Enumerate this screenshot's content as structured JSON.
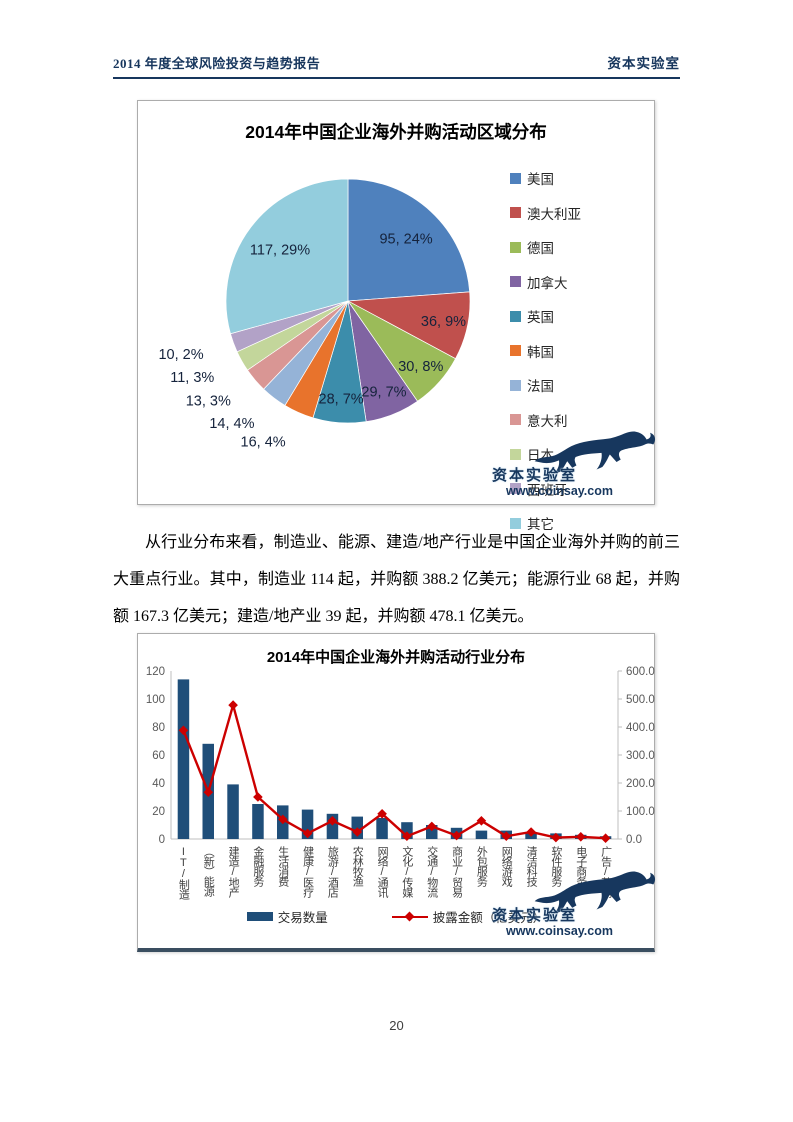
{
  "header": {
    "title": "2014 年度全球风险投资与趋势报告",
    "brand": "资本实验室"
  },
  "watermark": {
    "name": "资本实验室",
    "url": "www.coinsay.com"
  },
  "paragraph": "从行业分布来看，制造业、能源、建造/地产行业是中国企业海外并购的前三大重点行业。其中，制造业 114 起，并购额 388.2 亿美元；能源行业 68 起，并购额 167.3 亿美元；建造/地产业 39 起，并购额 478.1 亿美元。",
  "page_number": "20",
  "chart_data": [
    {
      "type": "pie",
      "title": "2014年中国企业海外并购活动区域分布",
      "labels": [
        "美国",
        "澳大利亚",
        "德国",
        "加拿大",
        "英国",
        "韩国",
        "法国",
        "意大利",
        "日本",
        "西班牙",
        "其它"
      ],
      "values": [
        95,
        36,
        30,
        29,
        28,
        16,
        14,
        13,
        11,
        10,
        117
      ],
      "percents": [
        24,
        9,
        8,
        7,
        7,
        4,
        4,
        3,
        3,
        2,
        29
      ],
      "colors": [
        "#4F81BD",
        "#C0504D",
        "#9BBB59",
        "#8064A2",
        "#3C8DAB",
        "#E8732C",
        "#95B3D7",
        "#D99694",
        "#C3D69B",
        "#B2A2C7",
        "#93CDDD"
      ],
      "label_format": "value, percent%",
      "legend_position": "right",
      "start_angle": 0,
      "direction": "clockwise"
    },
    {
      "type": "bar-line-combo",
      "title": "2014年中国企业海外并购活动行业分布",
      "categories": [
        "IT/制造",
        "（新）能源",
        "建造/地产",
        "金融服务",
        "生活消费",
        "健康/医疗",
        "旅游/酒店",
        "农林牧渔",
        "网络/通讯",
        "文化/传媒",
        "交通/物流",
        "商业/贸易",
        "外包服务",
        "网络游戏",
        "清洁科技",
        "软件服务",
        "电子商务",
        "广告/营销"
      ],
      "series": [
        {
          "name": "交易数量",
          "type": "bar",
          "axis": "left",
          "color": "#1F4E79",
          "values": [
            114,
            68,
            39,
            25,
            24,
            21,
            18,
            16,
            15,
            12,
            10,
            8,
            6,
            6,
            5,
            4,
            3,
            2
          ]
        },
        {
          "name": "披露金额（亿美元）",
          "type": "line",
          "axis": "right",
          "color": "#CC0000",
          "values": [
            388.2,
            167.3,
            478.1,
            150,
            70,
            20,
            65,
            25,
            90,
            10,
            45,
            12,
            65,
            10,
            25,
            5,
            8,
            3
          ]
        }
      ],
      "left_axis": {
        "min": 0,
        "max": 120,
        "step": 20
      },
      "right_axis": {
        "min": 0,
        "max": 600,
        "step": 100,
        "decimals": 1
      },
      "grid": false,
      "legend_position": "bottom"
    }
  ]
}
